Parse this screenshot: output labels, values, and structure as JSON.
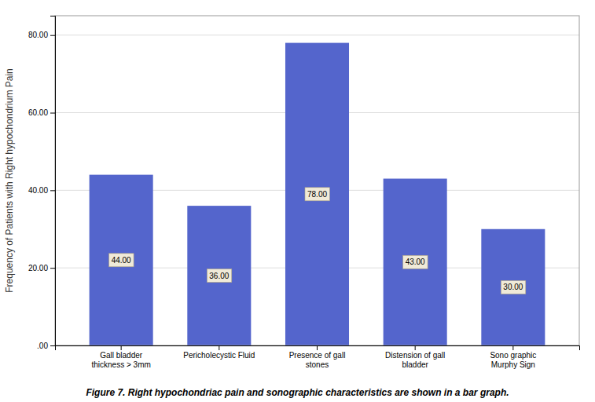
{
  "chart_data": {
    "type": "bar",
    "categories": [
      "Gall bladder\nthickness > 3mm",
      "Pericholecystic Fluid",
      "Presence of gall\nstones",
      "Distension of gall\nbladder",
      "Sono graphic\nMurphy Sign"
    ],
    "values": [
      44.0,
      36.0,
      78.0,
      43.0,
      30.0
    ],
    "value_labels": [
      "44.00",
      "36.00",
      "78.00",
      "43.00",
      "30.00"
    ],
    "data_labels": true,
    "color": "#5465cc",
    "ylabel": "Frequency of Patients with Right hypochondrium Pain",
    "caption": "Figure 7. Right hypochondriac pain and sonographic characteristics are shown in a bar graph.",
    "ylim": [
      0,
      85
    ],
    "yticks": [
      {
        "value": 0,
        "label": ".00"
      },
      {
        "value": 20,
        "label": "20.00"
      },
      {
        "value": 40,
        "label": "40.00"
      },
      {
        "value": 60,
        "label": "60.00"
      },
      {
        "value": 80,
        "label": "80.00"
      }
    ],
    "grid": true
  }
}
